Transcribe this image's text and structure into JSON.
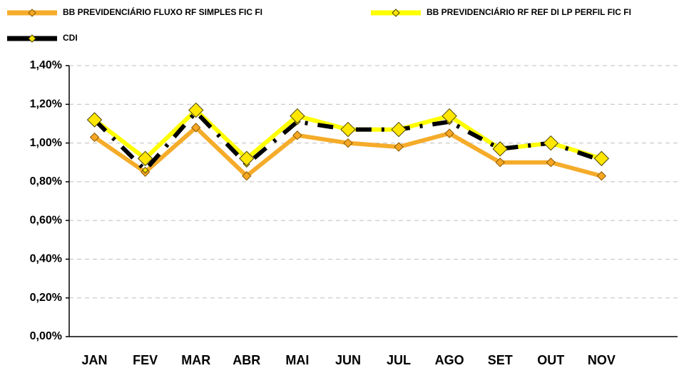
{
  "chart_data": {
    "type": "line",
    "categories": [
      "JAN",
      "FEV",
      "MAR",
      "ABR",
      "MAI",
      "JUN",
      "JUL",
      "AGO",
      "SET",
      "OUT",
      "NOV",
      null
    ],
    "series": [
      {
        "name": "BB PREVIDENCIÁRIO FLUXO RF SIMPLES FIC FI",
        "color": "#f5ac2a",
        "marker_color": "#f5a623",
        "values": [
          1.03,
          0.85,
          1.08,
          0.83,
          1.04,
          1.0,
          0.98,
          1.05,
          0.9,
          0.9,
          0.83,
          null
        ]
      },
      {
        "name": "BB PREVIDENCIÁRIO RF REF DI LP PERFIL FIC FI",
        "color": "#ffff00",
        "marker_color": "#ffe600",
        "values": [
          1.12,
          0.92,
          1.17,
          0.92,
          1.14,
          1.07,
          1.07,
          1.14,
          0.97,
          1.0,
          0.92,
          null
        ]
      },
      {
        "name": "CDI",
        "color": "#000000",
        "marker_color": "#ffe600",
        "values": [
          1.12,
          0.86,
          1.16,
          0.89,
          1.11,
          1.07,
          1.07,
          1.11,
          0.97,
          1.0,
          0.91,
          null
        ]
      }
    ],
    "ylim": [
      0,
      1.4
    ],
    "yticks": [
      {
        "value": 0,
        "label": "0,00%"
      },
      {
        "value": 0.2,
        "label": "0,20%"
      },
      {
        "value": 0.4,
        "label": "0,40%"
      },
      {
        "value": 0.6,
        "label": "0,60%"
      },
      {
        "value": 0.8,
        "label": "0,80%"
      },
      {
        "value": 1.0,
        "label": "1,00%"
      },
      {
        "value": 1.2,
        "label": "1,20%"
      },
      {
        "value": 1.4,
        "label": "1,40%"
      }
    ],
    "grid": true,
    "legend": "top"
  }
}
